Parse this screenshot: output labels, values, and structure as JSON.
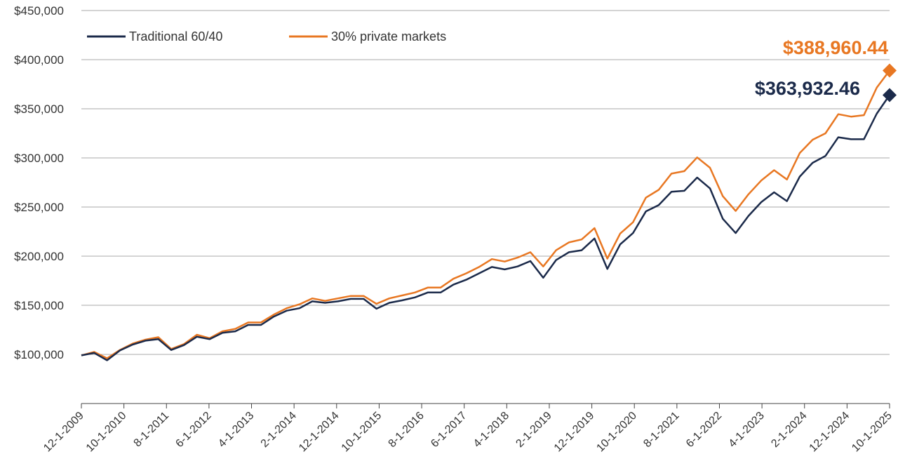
{
  "chart_data": {
    "type": "line",
    "title": "",
    "xlabel": "",
    "ylabel": "",
    "ylim": [
      50000,
      450000
    ],
    "y_ticks": [
      100000,
      150000,
      200000,
      250000,
      300000,
      350000,
      400000,
      450000
    ],
    "y_tick_labels": [
      "$100,000",
      "$150,000",
      "$200,000",
      "$250,000",
      "$300,000",
      "$350,000",
      "$400,000",
      "$450,000"
    ],
    "grid": true,
    "legend_position": "top-left",
    "x": [
      "12-1-2009",
      "3-1-2010",
      "6-1-2010",
      "9-1-2010",
      "12-1-2010",
      "3-1-2011",
      "6-1-2011",
      "9-1-2011",
      "12-1-2011",
      "3-1-2012",
      "6-1-2012",
      "9-1-2012",
      "12-1-2012",
      "3-1-2013",
      "6-1-2013",
      "9-1-2013",
      "12-1-2013",
      "3-1-2014",
      "6-1-2014",
      "9-1-2014",
      "12-1-2014",
      "3-1-2015",
      "6-1-2015",
      "9-1-2015",
      "12-1-2015",
      "3-1-2016",
      "6-1-2016",
      "9-1-2016",
      "12-1-2016",
      "3-1-2017",
      "6-1-2017",
      "9-1-2017",
      "12-1-2017",
      "3-1-2018",
      "6-1-2018",
      "9-1-2018",
      "12-1-2018",
      "3-1-2019",
      "6-1-2019",
      "9-1-2019",
      "12-1-2019",
      "3-1-2020",
      "6-1-2020",
      "9-1-2020",
      "12-1-2020",
      "3-1-2021",
      "6-1-2021",
      "9-1-2021",
      "12-1-2021",
      "3-1-2022",
      "6-1-2022",
      "9-1-2022",
      "12-1-2022",
      "3-1-2023",
      "6-1-2023",
      "9-1-2023",
      "12-1-2023",
      "3-1-2024",
      "6-1-2024",
      "9-1-2024",
      "12-1-2024",
      "3-1-2025",
      "6-1-2025",
      "9-1-2025"
    ],
    "x_tick_labels": [
      "12-1-2009",
      "10-1-2010",
      "8-1-2011",
      "6-1-2012",
      "4-1-2013",
      "2-1-2014",
      "12-1-2014",
      "10-1-2015",
      "8-1-2016",
      "6-1-2017",
      "4-1-2018",
      "2-1-2019",
      "12-1-2019",
      "10-1-2020",
      "8-1-2021",
      "6-1-2022",
      "4-1-2023",
      "2-1-2024",
      "12-1-2024",
      "10-1-2025"
    ],
    "series": [
      {
        "name": "Traditional 60/40",
        "color": "#1b2a4a",
        "values": [
          99000,
          101500,
          94000,
          104000,
          110000,
          114000,
          115500,
          104500,
          109500,
          118000,
          115500,
          122000,
          123500,
          130000,
          130000,
          138500,
          144500,
          147000,
          154000,
          152500,
          154000,
          156500,
          156500,
          146500,
          152500,
          155000,
          158000,
          163000,
          163000,
          171000,
          176000,
          182500,
          189000,
          186500,
          189500,
          195000,
          178000,
          196000,
          204000,
          206000,
          218000,
          187000,
          212000,
          223500,
          245500,
          252000,
          265500,
          266500,
          280000,
          269000,
          238000,
          223500,
          241000,
          255000,
          265000,
          256000,
          281000,
          295000,
          302000,
          321000,
          319000,
          319000,
          345000,
          363932.46
        ]
      },
      {
        "name": "30% private markets",
        "color": "#e87722",
        "values": [
          99000,
          102500,
          96000,
          104500,
          111000,
          115000,
          117500,
          105500,
          110500,
          120000,
          116500,
          123500,
          126000,
          132500,
          132500,
          140500,
          147000,
          151000,
          157000,
          154500,
          157000,
          159500,
          159500,
          151500,
          157000,
          160000,
          163000,
          168000,
          168000,
          177000,
          182500,
          189000,
          197000,
          194500,
          198500,
          204000,
          189500,
          206000,
          214000,
          217000,
          228500,
          197500,
          223000,
          234500,
          259500,
          267500,
          284000,
          286500,
          300500,
          290000,
          261000,
          246000,
          263000,
          277000,
          287500,
          278000,
          305000,
          318500,
          325000,
          344500,
          342000,
          343500,
          371500,
          388960.44
        ]
      }
    ],
    "end_labels": [
      {
        "series": "30% private markets",
        "text": "$388,960.44",
        "color": "#e87722"
      },
      {
        "series": "Traditional 60/40",
        "text": "$363,932.46",
        "color": "#1b2a4a"
      }
    ]
  }
}
